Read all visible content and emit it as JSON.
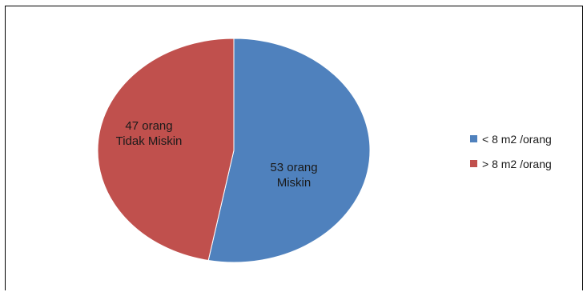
{
  "chart_data": {
    "type": "pie",
    "title": "",
    "categories": [
      "< 8 m2 /orang",
      "> 8 m2 /orang"
    ],
    "values": [
      53,
      47
    ],
    "colors": [
      "#4f81bd",
      "#c0504d"
    ],
    "slice_labels": [
      [
        "53 orang",
        "Miskin"
      ],
      [
        "47 orang",
        "Tidak Miskin"
      ]
    ],
    "legend": {
      "placement": "right",
      "entries": [
        "< 8 m2 /orang",
        "> 8 m2 /orang"
      ]
    }
  }
}
